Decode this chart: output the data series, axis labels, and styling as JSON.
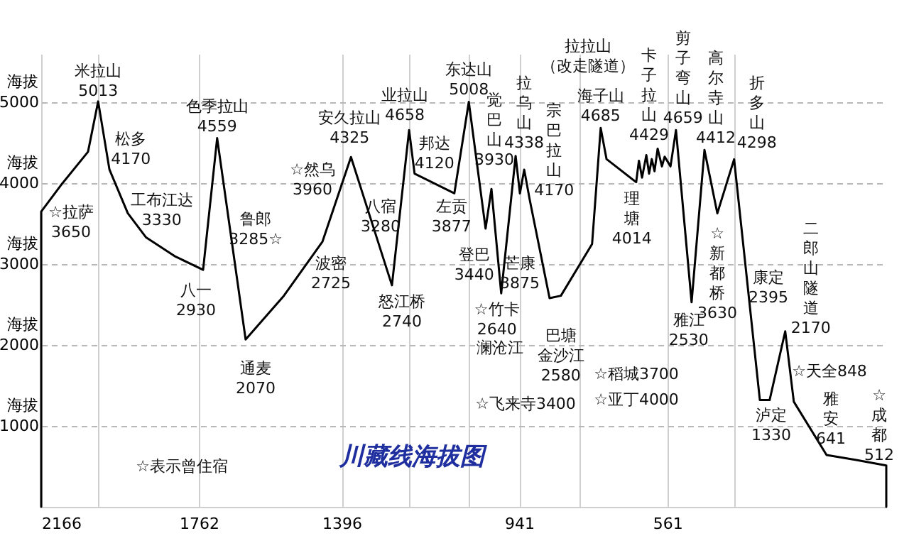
{
  "chart_data": {
    "type": "line",
    "title": "川藏线海拔图",
    "x": [
      2166,
      2166,
      2115,
      2046,
      2020,
      1991,
      1944,
      1897,
      1824,
      1751,
      1715,
      1642,
      1544,
      1445,
      1372,
      1267,
      1223,
      1209,
      1107,
      1070,
      1027,
      1012,
      987,
      950,
      939,
      928,
      914,
      863,
      834,
      754,
      732,
      717,
      641,
      634,
      626,
      615,
      608,
      601,
      594,
      586,
      575,
      568,
      553,
      539,
      499,
      466,
      433,
      390,
      324,
      299,
      259,
      237,
      153,
      77,
      0,
      0
    ],
    "series": [
      {
        "color": "#000000",
        "values": [
          0,
          3650,
          3980,
          4390,
          5013,
          4170,
          3630,
          3330,
          3100,
          2930,
          4559,
          2070,
          2610,
          3280,
          4325,
          2740,
          4658,
          4120,
          3877,
          5008,
          3440,
          3930,
          2640,
          4338,
          3875,
          4170,
          3800,
          2580,
          2610,
          3250,
          4685,
          4300,
          4014,
          4280,
          4070,
          4350,
          4120,
          4300,
          4150,
          4429,
          4210,
          4330,
          4210,
          4659,
          2530,
          4412,
          3630,
          4298,
          1320,
          1320,
          2170,
          1300,
          641,
          580,
          512,
          0
        ]
      }
    ],
    "xlim": [
      2166,
      0
    ],
    "xticks": [
      2166,
      {
        "value": 2020,
        "label": null
      },
      1762,
      1396,
      {
        "value": 1223,
        "label": null
      },
      {
        "value": 1070,
        "label": null
      },
      941,
      {
        "value": 786,
        "label": null
      },
      561,
      {
        "value": 390,
        "label": null
      }
    ],
    "ylim": [
      0,
      5600
    ],
    "yticks": [
      1000,
      2000,
      3000,
      4000,
      5000
    ],
    "ylabel": "海拔",
    "grid": true,
    "marker": "none",
    "line_style": "solid",
    "annotations": [
      {
        "text": "米拉山\n5013",
        "x": 2020,
        "y": 5013
      },
      {
        "text": "松多\n4170",
        "x": 1991,
        "y": 4170
      },
      {
        "text": "工布江达\n3330",
        "x": 1897,
        "y": 3330
      },
      {
        "text": "☆拉萨\n3650",
        "x": 2166,
        "y": 3650
      },
      {
        "text": "八一\n2930",
        "x": 1751,
        "y": 2930
      },
      {
        "text": "色季拉山\n4559",
        "x": 1715,
        "y": 4559
      },
      "鲁郎\n3285☆",
      {
        "text": "通麦\n2070",
        "x": 1642,
        "y": 2070
      },
      "☆然乌\n3960",
      "波密\n2725",
      {
        "text": "安久拉山\n4325",
        "x": 1372,
        "y": 4325
      },
      "八宿\n3280",
      {
        "text": "怒江桥\n2740",
        "x": 1267,
        "y": 2740
      },
      {
        "text": "业拉山\n4658",
        "x": 1223,
        "y": 4658
      },
      {
        "text": "邦达\n4120",
        "x": 1209,
        "y": 4120
      },
      {
        "text": "左贡\n3877",
        "x": 1107,
        "y": 3877
      },
      {
        "text": "东达山\n5008",
        "x": 1070,
        "y": 5008
      },
      {
        "text": "觉巴山\n3930",
        "x": 1012,
        "y": 3930
      },
      {
        "text": "登巴\n3440",
        "x": 1027,
        "y": 3440
      },
      {
        "text": "☆竹卡\n2640",
        "x": 987,
        "y": 2640
      },
      {
        "text": "澜沧江",
        "x": 987,
        "y": 2640
      },
      {
        "text": "拉乌山\n4338",
        "x": 950,
        "y": 4338
      },
      {
        "text": "宗巴拉山\n4170",
        "x": 928,
        "y": 4170
      },
      "芒康\n3875",
      {
        "text": "巴塘金沙江\n2580",
        "x": 863,
        "y": 2580
      },
      {
        "text": "海子山\n4685",
        "x": 732,
        "y": 4685
      },
      {
        "text": "理塘\n4014",
        "x": 641,
        "y": 4014
      },
      {
        "text": "卡子拉山\n4429",
        "x": 586,
        "y": 4429
      },
      {
        "text": "剪子弯山\n4659",
        "x": 539,
        "y": 4659
      },
      {
        "text": "高尔寺山\n4412",
        "x": 466,
        "y": 4412
      },
      {
        "text": "雅江\n2530",
        "x": 499,
        "y": 2530
      },
      {
        "text": "☆新都桥\n3630",
        "x": 433,
        "y": 3630
      },
      {
        "text": "折多山\n4298",
        "x": 390,
        "y": 4298
      },
      "康定\n2395",
      {
        "text": "泸定\n1330",
        "x": 313,
        "y": 1330
      },
      {
        "text": "二郎山隧道\n2170",
        "x": 259,
        "y": 2170
      },
      {
        "text": "雅安\n641",
        "x": 153,
        "y": 641
      },
      {
        "text": "☆成都\n512",
        "x": 0,
        "y": 512
      },
      "☆表示曾住宿",
      "☆飞来寺3400",
      "☆稻城3700",
      "☆亚丁4000",
      "☆天全848",
      "拉拉山（改走隧道）"
    ]
  }
}
